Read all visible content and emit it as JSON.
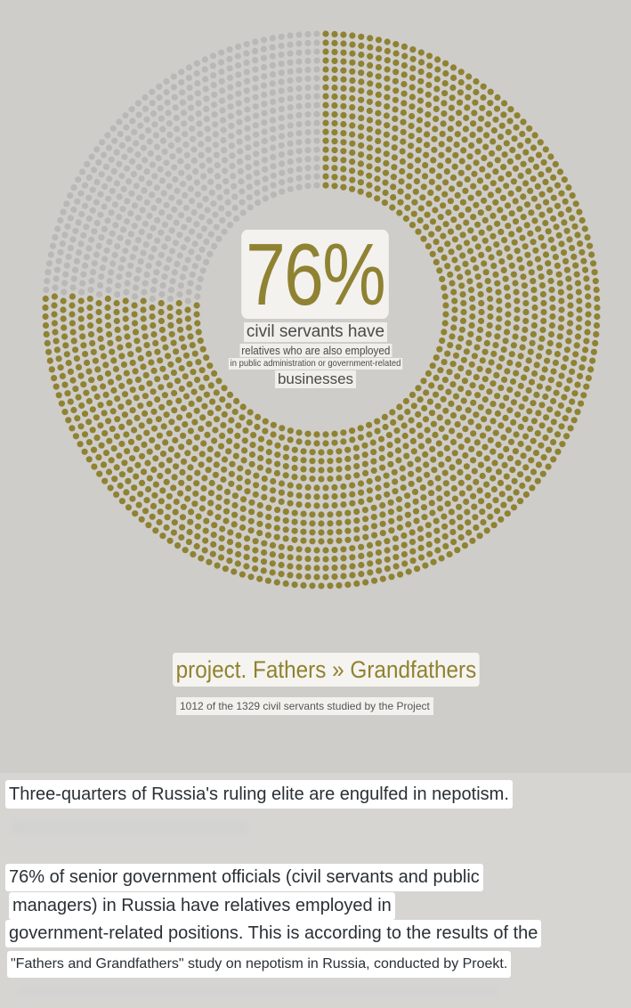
{
  "colors": {
    "highlight": "#8f8232",
    "remainder": "#b9b8b6",
    "panel_bg": "#cfcdca"
  },
  "chart_data": {
    "type": "pie",
    "style": "dot-donut",
    "values": [
      76,
      24
    ],
    "value_label": "76%",
    "caption_lines": [
      "civil servants have",
      "relatives who are also employed",
      "in public administration or government-related",
      "businesses"
    ],
    "brand": "project. Fathers » Grandfathers",
    "source": "1012 of the 1329 civil servants studied by the Project"
  },
  "article": {
    "headline": "Three-quarters of Russia's ruling elite are engulfed in nepotism.",
    "lines": [
      "76% of senior government officials (civil servants and public",
      "managers) in Russia have relatives employed in",
      "government-related positions. This is according to the results of the",
      "\"Fathers and Grandfathers\" study on nepotism in Russia, conducted by Proekt."
    ]
  }
}
